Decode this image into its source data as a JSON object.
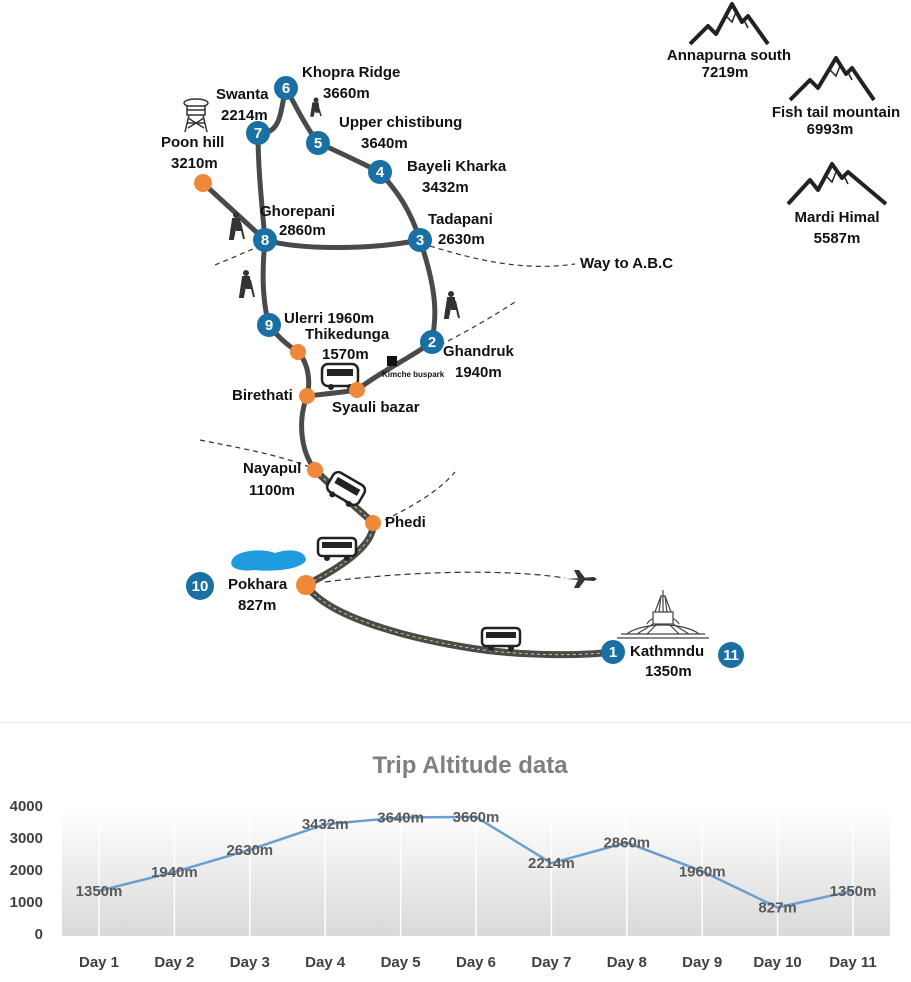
{
  "map": {
    "stops": [
      {
        "num": "1",
        "name": "Kathmndu",
        "alt": "1350m"
      },
      {
        "num": "2",
        "name": "Ghandruk",
        "alt": "1940m"
      },
      {
        "num": "3",
        "name": "Tadapani",
        "alt": "2630m"
      },
      {
        "num": "4",
        "name": "Bayeli Kharka",
        "alt": "3432m"
      },
      {
        "num": "5",
        "name": "Upper chistibung",
        "alt": "3640m"
      },
      {
        "num": "6",
        "name": "Khopra Ridge",
        "alt": "3660m"
      },
      {
        "num": "7",
        "name": "Swanta",
        "alt": "2214m"
      },
      {
        "num": "8",
        "name": "Ghorepani",
        "alt": "2860m"
      },
      {
        "num": "9",
        "name": "Ulerri 1960m",
        "alt": ""
      },
      {
        "num": "10",
        "name": "Pokhara",
        "alt": "827m"
      },
      {
        "num": "11",
        "name": "",
        "alt": ""
      }
    ],
    "waypoints": [
      {
        "name": "Poon hill",
        "alt": "3210m"
      },
      {
        "name": "Thikedunga",
        "alt": "1570m"
      },
      {
        "name": "Birethati",
        "alt": ""
      },
      {
        "name": "Syauli bazar",
        "alt": ""
      },
      {
        "name": "Nayapul",
        "alt": "1100m"
      },
      {
        "name": "Phedi",
        "alt": ""
      }
    ],
    "kimche_label": "Kimche buspark",
    "abc_label": "Way to A.B.C",
    "mountains": [
      {
        "name": "Annapurna south",
        "alt": "7219m"
      },
      {
        "name": "Fish tail mountain",
        "alt": "6993m"
      },
      {
        "name": "Mardi Himal",
        "alt": "5587m"
      }
    ],
    "colors": {
      "stop": "#1a6fa3",
      "waypoint": "#f0883a",
      "route": "#4a4a4a",
      "lake": "#1f9be0"
    }
  },
  "chart_data": {
    "type": "line",
    "title": "Trip Altitude data",
    "categories": [
      "Day 1",
      "Day 2",
      "Day 3",
      "Day 4",
      "Day 5",
      "Day 6",
      "Day 7",
      "Day 8",
      "Day 9",
      "Day 10",
      "Day 11"
    ],
    "series": [
      {
        "values": [
          1350,
          1940,
          2630,
          3432,
          3640,
          3660,
          2214,
          2860,
          1960,
          827,
          1350
        ]
      }
    ],
    "data_labels": [
      "1350m",
      "1940m",
      "2630m",
      "3432m",
      "3640m",
      "3660m",
      "2214m",
      "2860m",
      "1960m",
      "827m",
      "1350m"
    ],
    "yticks": [
      "0",
      "1000",
      "2000",
      "3000",
      "4000"
    ],
    "ylim": [
      0,
      4000
    ],
    "line_color": "#6a9fd0",
    "grid": false
  }
}
